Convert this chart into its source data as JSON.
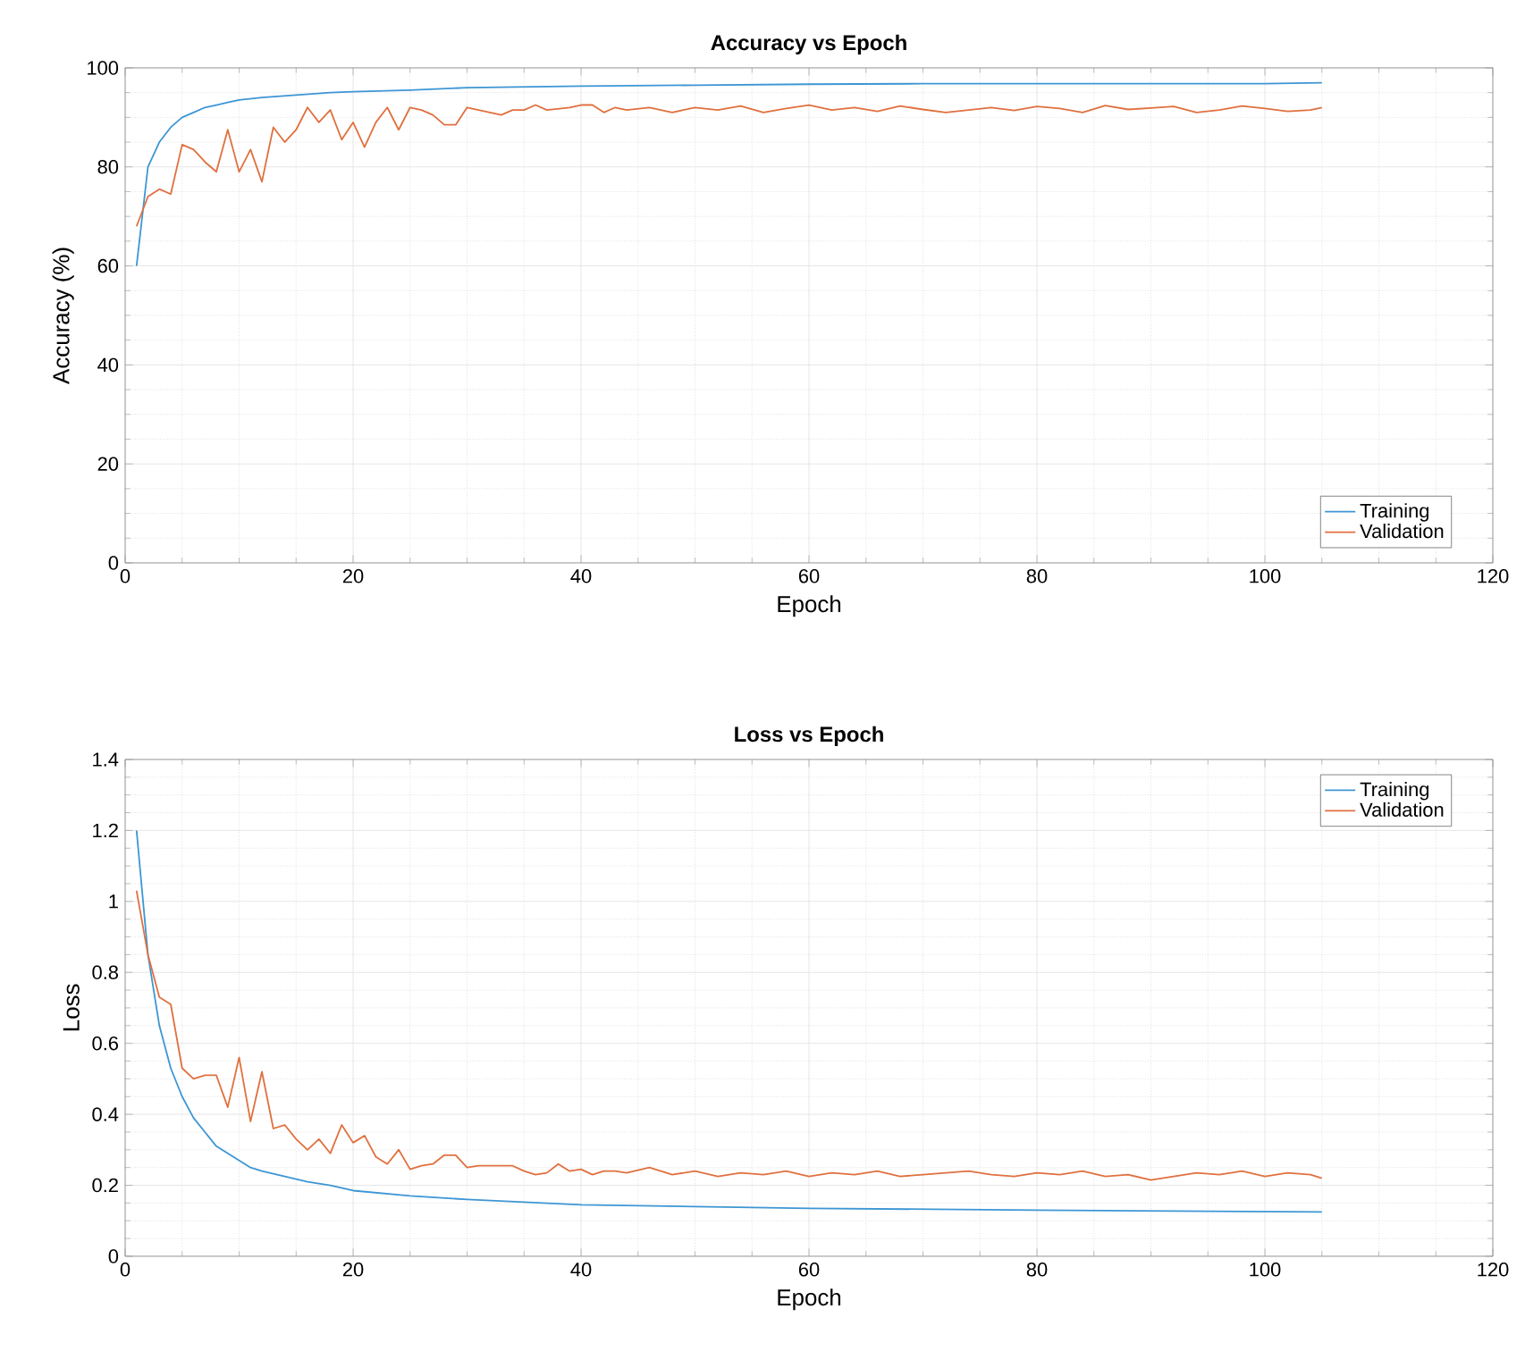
{
  "chart_data": [
    {
      "type": "line",
      "title": "Accuracy vs Epoch",
      "xlabel": "Epoch",
      "ylabel": "Accuracy (%)",
      "xlim": [
        0,
        120
      ],
      "xticks": [
        0,
        20,
        40,
        60,
        80,
        100,
        120
      ],
      "ylim": [
        0,
        100
      ],
      "yticks": [
        0,
        20,
        40,
        60,
        80,
        100
      ],
      "grid": true,
      "legend": "bottom right",
      "line_style": "solid",
      "series": [
        {
          "name": "Training",
          "color": "#3d96d4",
          "x": [
            1,
            2,
            3,
            4,
            5,
            6,
            7,
            8,
            9,
            10,
            12,
            15,
            18,
            20,
            25,
            30,
            40,
            50,
            60,
            70,
            80,
            90,
            100,
            105
          ],
          "values": [
            60,
            80,
            85,
            88,
            90,
            91,
            92,
            92.5,
            93,
            93.5,
            94,
            94.5,
            95,
            95.2,
            95.5,
            96,
            96.3,
            96.5,
            96.7,
            96.8,
            96.8,
            96.8,
            96.8,
            97
          ]
        },
        {
          "name": "Validation",
          "color": "#e0703f",
          "x": [
            1,
            2,
            3,
            4,
            5,
            6,
            7,
            8,
            9,
            10,
            11,
            12,
            13,
            14,
            15,
            16,
            17,
            18,
            19,
            20,
            21,
            22,
            23,
            24,
            25,
            26,
            27,
            28,
            29,
            30,
            31,
            33,
            34,
            35,
            36,
            37,
            39,
            40,
            41,
            42,
            43,
            44,
            46,
            48,
            50,
            52,
            54,
            56,
            58,
            60,
            62,
            64,
            66,
            68,
            70,
            72,
            74,
            76,
            78,
            80,
            82,
            84,
            86,
            88,
            90,
            92,
            94,
            96,
            98,
            100,
            102,
            104,
            105
          ],
          "values": [
            68,
            74,
            75.5,
            74.5,
            84.5,
            83.5,
            81,
            79,
            87.5,
            79,
            83.5,
            77,
            88,
            85,
            87.5,
            92,
            89,
            91.5,
            85.5,
            89,
            84,
            89,
            92,
            87.5,
            92,
            91.5,
            90.5,
            88.5,
            88.5,
            92,
            91.5,
            90.5,
            91.5,
            91.5,
            92.5,
            91.5,
            92,
            92.5,
            92.5,
            91,
            92,
            91.5,
            92,
            91,
            92,
            91.5,
            92.3,
            91,
            91.8,
            92.5,
            91.5,
            92,
            91.2,
            92.3,
            91.6,
            91,
            91.5,
            92,
            91.4,
            92.2,
            91.8,
            91,
            92.4,
            91.6,
            91.9,
            92.2,
            91,
            91.5,
            92.3,
            91.8,
            91.2,
            91.5,
            92
          ]
        }
      ]
    },
    {
      "type": "line",
      "title": "Loss vs Epoch",
      "xlabel": "Epoch",
      "ylabel": "Loss",
      "xlim": [
        0,
        120
      ],
      "xticks": [
        0,
        20,
        40,
        60,
        80,
        100,
        120
      ],
      "ylim": [
        0,
        1.4
      ],
      "yticks": [
        0,
        0.2,
        0.4,
        0.6,
        0.8,
        1,
        1.2,
        1.4
      ],
      "grid": true,
      "legend": "top right",
      "line_style": "solid",
      "series": [
        {
          "name": "Training",
          "color": "#3d96d4",
          "x": [
            1,
            2,
            3,
            4,
            5,
            6,
            7,
            8,
            9,
            10,
            11,
            12,
            14,
            16,
            18,
            20,
            25,
            30,
            40,
            50,
            60,
            80,
            105
          ],
          "values": [
            1.2,
            0.85,
            0.65,
            0.53,
            0.45,
            0.39,
            0.35,
            0.31,
            0.29,
            0.27,
            0.25,
            0.24,
            0.225,
            0.21,
            0.2,
            0.185,
            0.17,
            0.16,
            0.145,
            0.14,
            0.135,
            0.13,
            0.125
          ]
        },
        {
          "name": "Validation",
          "color": "#e0703f",
          "x": [
            1,
            2,
            3,
            4,
            5,
            6,
            7,
            8,
            9,
            10,
            11,
            12,
            13,
            14,
            15,
            16,
            17,
            18,
            19,
            20,
            21,
            22,
            23,
            24,
            25,
            26,
            27,
            28,
            29,
            30,
            31,
            32,
            33,
            34,
            35,
            36,
            37,
            38,
            39,
            40,
            41,
            42,
            43,
            44,
            46,
            48,
            50,
            52,
            54,
            56,
            58,
            60,
            62,
            64,
            66,
            68,
            70,
            72,
            74,
            76,
            78,
            80,
            82,
            84,
            86,
            88,
            90,
            92,
            94,
            96,
            98,
            100,
            102,
            104,
            105
          ],
          "values": [
            1.03,
            0.85,
            0.73,
            0.71,
            0.53,
            0.5,
            0.51,
            0.51,
            0.42,
            0.56,
            0.38,
            0.52,
            0.36,
            0.37,
            0.33,
            0.3,
            0.33,
            0.29,
            0.37,
            0.32,
            0.34,
            0.28,
            0.26,
            0.3,
            0.245,
            0.255,
            0.26,
            0.285,
            0.285,
            0.25,
            0.255,
            0.255,
            0.255,
            0.255,
            0.24,
            0.23,
            0.235,
            0.26,
            0.24,
            0.245,
            0.23,
            0.24,
            0.24,
            0.235,
            0.25,
            0.23,
            0.24,
            0.225,
            0.235,
            0.23,
            0.24,
            0.225,
            0.235,
            0.23,
            0.24,
            0.225,
            0.23,
            0.235,
            0.24,
            0.23,
            0.225,
            0.235,
            0.23,
            0.24,
            0.225,
            0.23,
            0.215,
            0.225,
            0.235,
            0.23,
            0.24,
            0.225,
            0.235,
            0.23,
            0.22
          ]
        }
      ]
    }
  ]
}
